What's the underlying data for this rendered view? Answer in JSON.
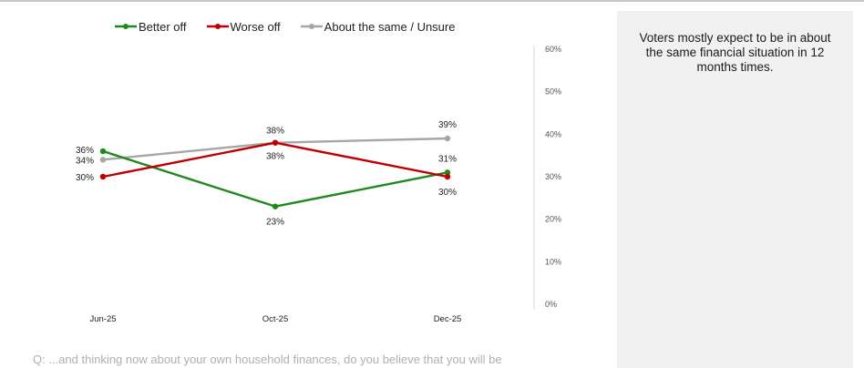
{
  "chart_data": {
    "type": "line",
    "categories": [
      "Jun-25",
      "Oct-25",
      "Dec-25"
    ],
    "series": [
      {
        "name": "Better off",
        "values": [
          36,
          23,
          31
        ],
        "color": "#1e8a1e"
      },
      {
        "name": "Worse off",
        "values": [
          30,
          38,
          30
        ],
        "color": "#c00000"
      },
      {
        "name": "About the same / Unsure",
        "values": [
          34,
          38,
          39
        ],
        "color": "#a6a6a6"
      }
    ],
    "y_ticks": [
      "0%",
      "10%",
      "20%",
      "30%",
      "40%",
      "50%",
      "60%"
    ],
    "ylim": [
      0,
      60
    ],
    "y_axis_side": "right",
    "grid": false,
    "legend_position": "top",
    "value_suffix": "%"
  },
  "side_panel": {
    "text": "Voters mostly expect to be in about the same financial situation in 12 months times."
  },
  "footnote": "Q: ...and thinking now about your own household finances, do you believe that you will be"
}
